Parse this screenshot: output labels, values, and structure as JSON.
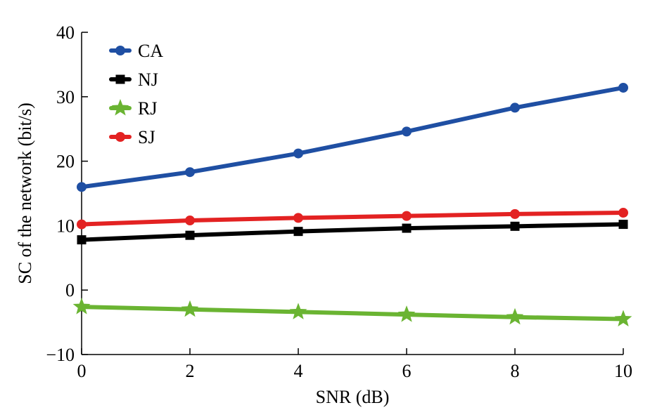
{
  "chart_data": {
    "type": "line",
    "title": "",
    "xlabel": "SNR (dB)",
    "ylabel": "SC of the network (bit/s)",
    "xlim": [
      0,
      10
    ],
    "ylim": [
      -10,
      40
    ],
    "x": [
      0,
      2,
      4,
      6,
      8,
      10
    ],
    "xticks": [
      0,
      2,
      4,
      6,
      8,
      10
    ],
    "xtick_labels": [
      "0",
      "2",
      "4",
      "6",
      "8",
      "10"
    ],
    "yticks": [
      -10,
      0,
      10,
      20,
      30,
      40
    ],
    "ytick_labels": [
      "−10",
      "0",
      "10",
      "20",
      "30",
      "40"
    ],
    "grid": false,
    "legend_position": "top-left",
    "series": [
      {
        "name": "CA",
        "color": "#1f4fa3",
        "marker": "circle",
        "values": [
          16.0,
          18.3,
          21.2,
          24.6,
          28.3,
          31.4
        ]
      },
      {
        "name": "NJ",
        "color": "#000000",
        "marker": "square",
        "values": [
          7.8,
          8.5,
          9.1,
          9.6,
          9.9,
          10.2
        ]
      },
      {
        "name": "RJ",
        "color": "#6ab432",
        "marker": "star",
        "values": [
          -2.6,
          -3.0,
          -3.4,
          -3.8,
          -4.2,
          -4.5
        ]
      },
      {
        "name": "SJ",
        "color": "#e32222",
        "marker": "circle",
        "values": [
          10.2,
          10.8,
          11.2,
          11.5,
          11.8,
          12.0
        ]
      }
    ]
  }
}
